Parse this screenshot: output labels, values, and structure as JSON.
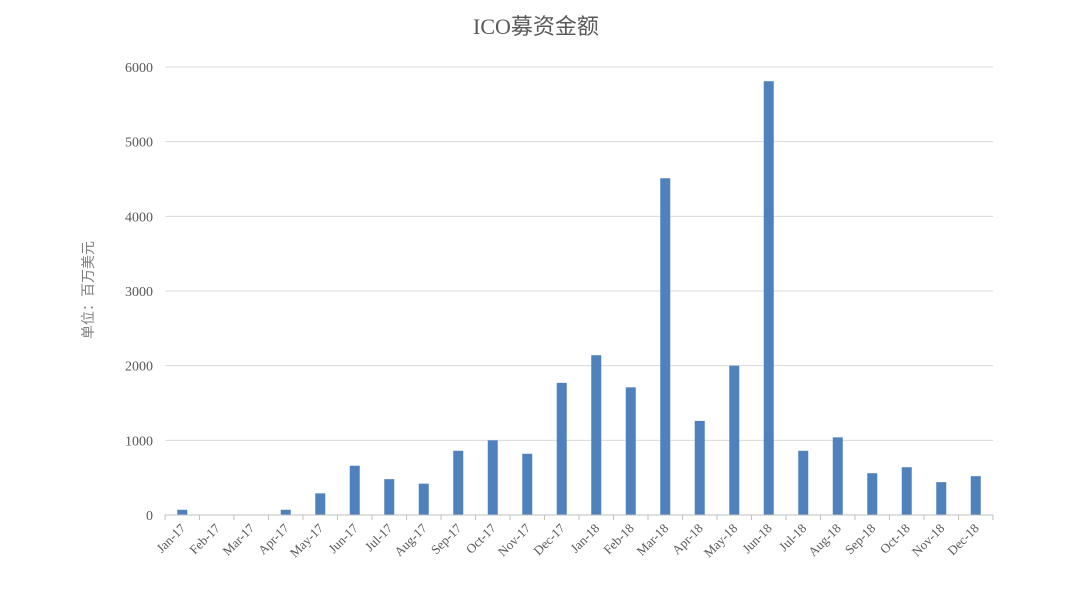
{
  "chart_data": {
    "type": "bar",
    "title": "ICO募资金额",
    "xlabel": "",
    "ylabel": "单位：百万美元",
    "ylim": [
      0,
      6000
    ],
    "yticks": [
      0,
      1000,
      2000,
      3000,
      4000,
      5000,
      6000
    ],
    "grid": true,
    "legend": "none",
    "bar_color": "#4f81bd",
    "categories": [
      "Jan-17",
      "Feb-17",
      "Mar-17",
      "Apr-17",
      "May-17",
      "Jun-17",
      "Jul-17",
      "Aug-17",
      "Sep-17",
      "Oct-17",
      "Nov-17",
      "Dec-17",
      "Jan-18",
      "Feb-18",
      "Mar-18",
      "Apr-18",
      "May-18",
      "Jun-18",
      "Jul-18",
      "Aug-18",
      "Sep-18",
      "Oct-18",
      "Nov-18",
      "Dec-18"
    ],
    "values": [
      70,
      0,
      0,
      70,
      290,
      660,
      480,
      420,
      860,
      1000,
      820,
      1770,
      2140,
      1710,
      4510,
      1260,
      2000,
      5810,
      860,
      1040,
      560,
      640,
      440,
      520
    ]
  }
}
